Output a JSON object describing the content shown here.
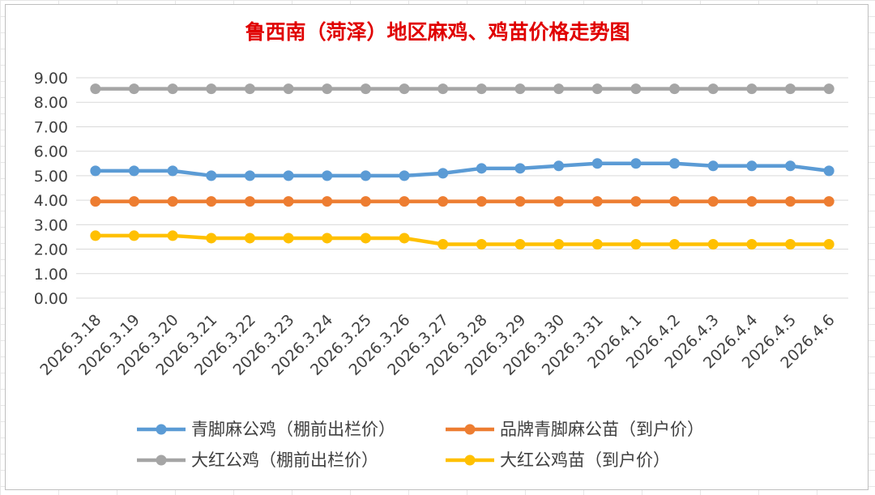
{
  "chart_data": {
    "type": "line",
    "title": "鲁西南（菏泽）地区麻鸡、鸡苗价格走势图",
    "xlabel": "",
    "ylabel": "",
    "ylim": [
      0,
      9
    ],
    "y_tick_labels": [
      "0.00",
      "1.00",
      "2.00",
      "3.00",
      "4.00",
      "5.00",
      "6.00",
      "7.00",
      "8.00",
      "9.00"
    ],
    "grid": true,
    "legend_position": "bottom",
    "categories": [
      "2026.3.18",
      "2026.3.19",
      "2026.3.20",
      "2026.3.21",
      "2026.3.22",
      "2026.3.23",
      "2026.3.24",
      "2026.3.25",
      "2026.3.26",
      "2026.3.27",
      "2026.3.28",
      "2026.3.29",
      "2026.3.30",
      "2026.3.31",
      "2026.4.1",
      "2026.4.2",
      "2026.4.3",
      "2026.4.4",
      "2026.4.5",
      "2026.4.6"
    ],
    "series": [
      {
        "name": "青脚麻公鸡（棚前出栏价）",
        "color": "#5b9bd5",
        "values": [
          5.2,
          5.2,
          5.2,
          5.0,
          5.0,
          5.0,
          5.0,
          5.0,
          5.0,
          5.1,
          5.3,
          5.3,
          5.4,
          5.5,
          5.5,
          5.5,
          5.4,
          5.4,
          5.4,
          5.2
        ]
      },
      {
        "name": "品牌青脚麻公苗（到户价）",
        "color": "#ed7d31",
        "values": [
          3.95,
          3.95,
          3.95,
          3.95,
          3.95,
          3.95,
          3.95,
          3.95,
          3.95,
          3.95,
          3.95,
          3.95,
          3.95,
          3.95,
          3.95,
          3.95,
          3.95,
          3.95,
          3.95,
          3.95
        ]
      },
      {
        "name": "大红公鸡（棚前出栏价）",
        "color": "#a5a5a5",
        "values": [
          8.55,
          8.55,
          8.55,
          8.55,
          8.55,
          8.55,
          8.55,
          8.55,
          8.55,
          8.55,
          8.55,
          8.55,
          8.55,
          8.55,
          8.55,
          8.55,
          8.55,
          8.55,
          8.55,
          8.55
        ]
      },
      {
        "name": "大红公鸡苗（到户价）",
        "color": "#ffc000",
        "values": [
          2.55,
          2.55,
          2.55,
          2.45,
          2.45,
          2.45,
          2.45,
          2.45,
          2.45,
          2.2,
          2.2,
          2.2,
          2.2,
          2.2,
          2.2,
          2.2,
          2.2,
          2.2,
          2.2,
          2.2
        ]
      }
    ]
  }
}
